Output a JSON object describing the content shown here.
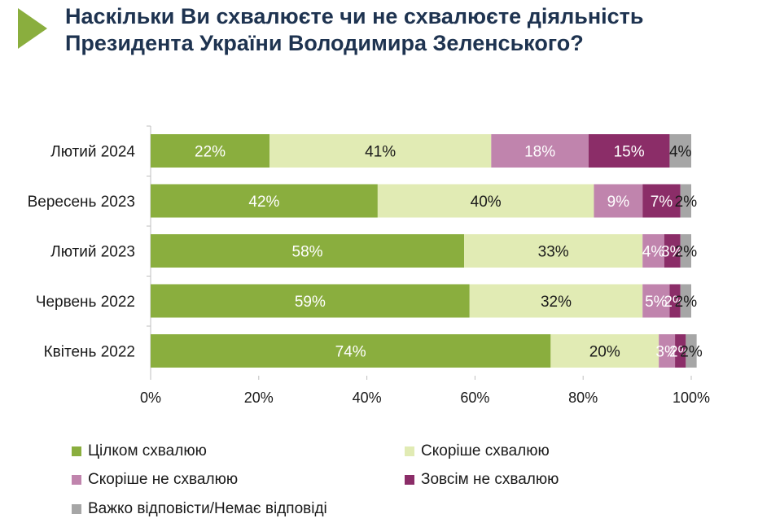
{
  "title_lines": [
    "Наскільки Ви схвалюєте чи не схвалюєте діяльність",
    "Президента України Володимира Зеленського?"
  ],
  "colors": {
    "accent": "#8aae3e",
    "title": "#1e3350",
    "series": [
      "#8aae3e",
      "#e1ebb4",
      "#c084ad",
      "#8b2d68",
      "#a6a6a6"
    ],
    "label_text": [
      "#ffffff",
      "#1a1a1a",
      "#ffffff",
      "#ffffff",
      "#1a1a1a"
    ]
  },
  "chart_data": {
    "type": "bar",
    "orientation": "horizontal",
    "stacked": true,
    "categories": [
      "Лютий 2024",
      "Вересень 2023",
      "Лютий 2023",
      "Червень 2022",
      "Квітень 2022"
    ],
    "series": [
      {
        "name": "Цілком схвалюю",
        "values": [
          22,
          42,
          58,
          59,
          74
        ],
        "labels": [
          "22%",
          "42%",
          "58%",
          "59%",
          "74%"
        ]
      },
      {
        "name": "Скоріше схвалюю",
        "values": [
          41,
          40,
          33,
          32,
          20
        ],
        "labels": [
          "41%",
          "40%",
          "33%",
          "32%",
          "20%"
        ]
      },
      {
        "name": "Скоріше не схвалюю",
        "values": [
          18,
          9,
          4,
          5,
          3
        ],
        "labels": [
          "18%",
          "9%",
          "4%",
          "5%",
          "3%"
        ]
      },
      {
        "name": "Зовсім не схвалюю",
        "values": [
          15,
          7,
          3,
          2,
          2
        ],
        "labels": [
          "15%",
          "7%",
          "3%",
          "2%",
          "2%"
        ]
      },
      {
        "name": "Важко відповісти/Немає відповіді",
        "values": [
          4,
          2,
          2,
          2,
          2
        ],
        "labels": [
          "4%",
          "2%",
          "2%",
          "2%",
          "2%"
        ]
      }
    ],
    "xlim": [
      0,
      100
    ],
    "xticks": [
      "0%",
      "20%",
      "40%",
      "60%",
      "80%",
      "100%"
    ],
    "legend_position": "bottom",
    "grid": false
  }
}
